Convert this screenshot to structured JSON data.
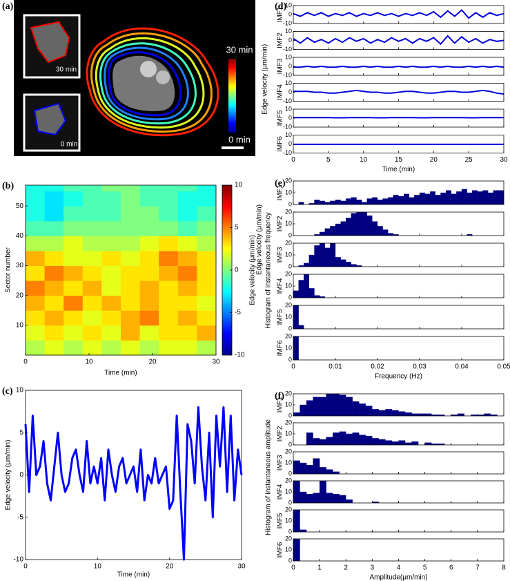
{
  "chart_data": [
    {
      "type": "image",
      "label": "(a)",
      "inset_labels": [
        "30 min",
        "0 min"
      ],
      "colorbar_labels": [
        "30 min",
        "0 min"
      ]
    },
    {
      "type": "heatmap",
      "label": "(b)",
      "xlabel": "Time (min)",
      "ylabel": "Sector number",
      "colorbar_label": "Edge velocity (μm/min)",
      "xlim": [
        0,
        30
      ],
      "xticks": [
        0,
        10,
        20,
        30
      ],
      "ylim": [
        0,
        57
      ],
      "yticks": [
        10,
        20,
        30,
        40,
        50
      ],
      "clim": [
        -10,
        10
      ],
      "cticks": [
        10,
        5,
        0,
        -5,
        -10
      ],
      "xbins": [
        0,
        3,
        6,
        9,
        12,
        15,
        18,
        21,
        24,
        27,
        30
      ],
      "ybins": [
        0,
        5,
        10,
        15,
        20,
        25,
        30,
        35,
        40,
        45,
        50,
        55,
        57
      ],
      "z": [
        [
          1,
          2,
          1,
          2,
          1,
          2,
          1,
          2,
          2,
          1
        ],
        [
          2,
          3,
          2,
          3,
          2,
          4,
          2,
          3,
          3,
          4
        ],
        [
          3,
          4,
          3,
          2,
          3,
          4,
          5,
          3,
          4,
          3
        ],
        [
          4,
          3,
          5,
          3,
          4,
          3,
          4,
          3,
          3,
          2
        ],
        [
          5,
          4,
          3,
          4,
          2,
          3,
          4,
          3,
          4,
          3
        ],
        [
          3,
          5,
          4,
          3,
          2,
          3,
          3,
          4,
          5,
          3
        ],
        [
          4,
          3,
          2,
          2,
          3,
          2,
          3,
          5,
          4,
          3
        ],
        [
          1,
          1,
          2,
          1,
          1,
          1,
          2,
          3,
          2,
          1
        ],
        [
          -1,
          -1,
          0,
          0,
          0,
          0,
          0,
          0,
          -1,
          0
        ],
        [
          -2,
          -3,
          -1,
          -1,
          -1,
          0,
          0,
          -1,
          -2,
          -1
        ],
        [
          -2,
          -3,
          -2,
          -1,
          -1,
          0,
          -1,
          -1,
          -2,
          -2
        ],
        [
          -2,
          -2,
          -1,
          -1,
          0,
          0,
          -1,
          -1,
          -1,
          -2
        ]
      ]
    },
    {
      "type": "line",
      "label": "(c)",
      "xlabel": "Time (min)",
      "ylabel": "Edge velocity (μm/min)",
      "color": "#0000ff",
      "xlim": [
        0,
        30
      ],
      "xticks": [
        0,
        10,
        20,
        30
      ],
      "ylim": [
        -10,
        10
      ],
      "yticks": [
        -10,
        -5,
        0,
        5,
        10
      ],
      "x": [
        0,
        0.5,
        1,
        1.5,
        2,
        2.5,
        3,
        3.5,
        4,
        4.5,
        5,
        5.5,
        6,
        6.5,
        7,
        7.5,
        8,
        8.5,
        9,
        9.5,
        10,
        10.5,
        11,
        11.5,
        12,
        12.5,
        13,
        13.5,
        14,
        14.5,
        15,
        15.5,
        16,
        16.5,
        17,
        17.5,
        18,
        18.5,
        19,
        19.5,
        20,
        20.5,
        21,
        21.5,
        22,
        22.5,
        23,
        23.5,
        24,
        24.5,
        25,
        25.5,
        26,
        26.5,
        27,
        27.5,
        28,
        28.5,
        29,
        29.5,
        30
      ],
      "values": [
        6,
        -2,
        7,
        0,
        1,
        4,
        -1,
        -3,
        1,
        5,
        0,
        -2,
        -1,
        2,
        3,
        0,
        -2,
        4,
        -1,
        1,
        -1,
        2,
        -3,
        3,
        0,
        -2,
        1,
        2,
        -1,
        0,
        1,
        -2,
        3,
        -3,
        0,
        -1,
        2,
        -1,
        0,
        1,
        -4,
        -3,
        7,
        -2,
        -10,
        6,
        4,
        -1,
        8,
        1,
        -3,
        5,
        -5,
        7,
        1,
        8,
        -2,
        7,
        -3,
        3,
        0
      ]
    },
    {
      "type": "line",
      "layout": "stacked",
      "label": "(d)",
      "xlabel": "Time (min)",
      "ylabel": "Edge velocity (μm/min)",
      "xlim": [
        0,
        30
      ],
      "xticks": [
        0,
        5,
        10,
        15,
        20,
        25,
        30
      ],
      "ylim": [
        -10,
        10
      ],
      "yticks": [
        -10,
        0,
        10
      ],
      "x": [
        0,
        1,
        2,
        3,
        4,
        5,
        6,
        7,
        8,
        9,
        10,
        11,
        12,
        13,
        14,
        15,
        16,
        17,
        18,
        19,
        20,
        21,
        22,
        23,
        24,
        25,
        26,
        27,
        28,
        29,
        30
      ],
      "series": [
        {
          "name": "IMF1",
          "color": "#0000dd",
          "values": [
            1,
            -2,
            2,
            -1,
            2,
            -2,
            1,
            -1,
            2,
            -2,
            1,
            -1,
            2,
            -1,
            1,
            -2,
            1,
            -1,
            2,
            -1,
            3,
            -3,
            4,
            -2,
            5,
            -4,
            2,
            -3,
            2,
            -1,
            1
          ]
        },
        {
          "name": "IMF2",
          "color": "#0000dd",
          "values": [
            2,
            -3,
            3,
            -2,
            1,
            -3,
            2,
            -2,
            3,
            -1,
            2,
            -3,
            1,
            -2,
            3,
            -1,
            2,
            -3,
            2,
            -1,
            3,
            -4,
            5,
            -3,
            4,
            -2,
            2,
            -3,
            1,
            -1,
            0
          ]
        },
        {
          "name": "IMF3",
          "color": "#0000dd",
          "values": [
            -1,
            -1,
            0,
            -1,
            0,
            -1,
            -1,
            0,
            -1,
            -1,
            0,
            -1,
            0,
            -1,
            -1,
            0,
            -1,
            0,
            -1,
            -1,
            0,
            -1,
            0,
            -1,
            -1,
            0,
            -1,
            0,
            -1,
            0,
            -1
          ]
        },
        {
          "name": "IMF4",
          "color": "#0000dd",
          "values": [
            1,
            1,
            1,
            0,
            0,
            -1,
            -1,
            0,
            1,
            2,
            1,
            0,
            0,
            -1,
            -1,
            0,
            1,
            1,
            0,
            -1,
            -1,
            0,
            1,
            1,
            0,
            0,
            1,
            2,
            1,
            -1,
            -2
          ]
        },
        {
          "name": "IMF5",
          "color": "#0000dd",
          "values": [
            0.5,
            0.5,
            0.5,
            0.6,
            0.6,
            0.5,
            0.4,
            0.4,
            0.5,
            0.6,
            0.6,
            0.5,
            0.4,
            0.4,
            0.5,
            0.6,
            0.6,
            0.5,
            0.4,
            0.4,
            0.5,
            0.6,
            0.6,
            0.5,
            0.5,
            0.4,
            0.4,
            0.5,
            0.6,
            0.6,
            0.5
          ]
        },
        {
          "name": "IMF6",
          "color": "#0000dd",
          "values": [
            -0.3,
            -0.3,
            -0.3,
            -0.3,
            -0.3,
            -0.3,
            -0.3,
            -0.3,
            -0.3,
            -0.3,
            -0.3,
            -0.3,
            -0.3,
            -0.3,
            -0.3,
            -0.3,
            -0.3,
            -0.3,
            -0.3,
            -0.3,
            -0.3,
            -0.3,
            -0.3,
            -0.3,
            -0.3,
            -0.3,
            -0.3,
            -0.3,
            -0.3,
            -0.3,
            -0.3
          ]
        }
      ]
    },
    {
      "type": "histogram",
      "layout": "stacked",
      "label": "(e)",
      "xlabel": "Frequency (Hz)",
      "ylabel": "Histogram of instantaneous frequency",
      "ylabel_outer": "Edge velocity (μm/min)",
      "xlim": [
        0,
        0.05
      ],
      "xticks": [
        0,
        0.01,
        0.02,
        0.03,
        0.04,
        0.05
      ],
      "ylim": [
        0,
        20
      ],
      "yticks": [
        0,
        10,
        20
      ],
      "bins": [
        0,
        0.00125,
        0.0025,
        0.00375,
        0.005,
        0.00625,
        0.0075,
        0.00875,
        0.01,
        0.01125,
        0.0125,
        0.01375,
        0.015,
        0.01625,
        0.0175,
        0.01875,
        0.02,
        0.02125,
        0.0225,
        0.02375,
        0.025,
        0.02625,
        0.0275,
        0.02875,
        0.03,
        0.03125,
        0.0325,
        0.03375,
        0.035,
        0.03625,
        0.0375,
        0.03875,
        0.04,
        0.04125,
        0.0425,
        0.04375,
        0.045,
        0.04625,
        0.0475,
        0.04875,
        0.05
      ],
      "series": [
        {
          "name": "IMF1",
          "color": "#000080",
          "values": [
            0,
            2,
            0,
            1,
            4,
            3,
            2,
            3,
            4,
            3,
            5,
            6,
            4,
            2,
            5,
            6,
            4,
            5,
            6,
            8,
            7,
            9,
            6,
            8,
            10,
            9,
            11,
            8,
            10,
            12,
            9,
            11,
            13,
            10,
            12,
            11,
            12,
            10,
            12,
            12
          ]
        },
        {
          "name": "IMF2",
          "color": "#000080",
          "values": [
            0,
            0,
            0,
            0,
            1,
            3,
            6,
            8,
            10,
            12,
            15,
            19,
            20,
            20,
            17,
            12,
            8,
            5,
            2,
            1,
            0,
            0,
            0,
            0,
            0,
            0,
            0,
            0,
            0,
            0,
            0,
            0,
            0,
            1,
            0,
            0,
            0,
            0,
            0,
            0
          ]
        },
        {
          "name": "IMF3",
          "color": "#000080",
          "values": [
            0,
            1,
            3,
            10,
            18,
            20,
            16,
            20,
            8,
            6,
            4,
            2,
            1,
            0,
            0,
            0,
            0,
            0,
            0,
            0,
            0,
            0,
            0,
            0,
            0,
            0,
            0,
            0,
            0,
            0,
            0,
            0,
            0,
            0,
            0,
            0,
            0,
            0,
            0,
            0
          ]
        },
        {
          "name": "IMF4",
          "color": "#000080",
          "values": [
            6,
            15,
            20,
            8,
            2,
            1,
            0,
            0,
            0,
            0,
            0,
            0,
            0,
            0,
            0,
            0,
            0,
            0,
            0,
            0,
            0,
            0,
            0,
            0,
            0,
            0,
            0,
            0,
            0,
            0,
            0,
            0,
            0,
            0,
            0,
            0,
            0,
            0,
            0,
            0
          ]
        },
        {
          "name": "IMF5",
          "color": "#000080",
          "values": [
            20,
            3,
            0,
            0,
            0,
            0,
            0,
            0,
            0,
            0,
            0,
            0,
            0,
            0,
            0,
            0,
            0,
            0,
            0,
            0,
            0,
            0,
            0,
            0,
            0,
            0,
            0,
            0,
            0,
            0,
            0,
            0,
            0,
            0,
            0,
            0,
            0,
            0,
            0,
            0
          ]
        },
        {
          "name": "IMF6",
          "color": "#000080",
          "values": [
            20,
            0,
            0,
            0,
            0,
            0,
            0,
            0,
            0,
            0,
            0,
            0,
            0,
            0,
            0,
            0,
            0,
            0,
            0,
            0,
            0,
            0,
            0,
            0,
            0,
            0,
            0,
            0,
            0,
            0,
            0,
            0,
            0,
            0,
            0,
            0,
            0,
            0,
            0,
            0
          ]
        }
      ]
    },
    {
      "type": "histogram",
      "layout": "stacked",
      "label": "(f)",
      "xlabel": "Amplitude(μm/min)",
      "ylabel": "Histogram of instantaneous amplitude",
      "xlim": [
        0,
        8
      ],
      "xticks": [
        0,
        1,
        2,
        3,
        4,
        5,
        6,
        7,
        8
      ],
      "ylim": [
        0,
        20
      ],
      "yticks": [
        0,
        10,
        20
      ],
      "bins": [
        0,
        0.25,
        0.5,
        0.75,
        1,
        1.25,
        1.5,
        1.75,
        2,
        2.25,
        2.5,
        2.75,
        3,
        3.25,
        3.5,
        3.75,
        4,
        4.25,
        4.5,
        4.75,
        5,
        5.25,
        5.5,
        5.75,
        6,
        6.25,
        6.5,
        6.75,
        7,
        7.25,
        7.5,
        7.75,
        8
      ],
      "series": [
        {
          "name": "IMF1",
          "color": "#000080",
          "values": [
            3,
            10,
            14,
            17,
            17,
            20,
            20,
            19,
            17,
            13,
            11,
            9,
            6,
            5,
            6,
            5,
            4,
            3,
            2,
            2,
            2,
            1,
            1,
            0,
            1,
            2,
            0,
            1,
            1,
            2,
            1,
            0
          ]
        },
        {
          "name": "IMF2",
          "color": "#000080",
          "values": [
            0,
            0,
            11,
            6,
            5,
            7,
            11,
            12,
            10,
            11,
            9,
            8,
            6,
            5,
            4,
            3,
            4,
            2,
            3,
            0,
            2,
            1,
            1,
            0,
            0,
            0,
            0,
            0,
            0,
            0,
            0,
            0
          ]
        },
        {
          "name": "IMF3",
          "color": "#000080",
          "values": [
            12,
            10,
            8,
            14,
            6,
            4,
            2,
            0,
            0,
            0,
            0,
            0,
            0,
            0,
            0,
            0,
            0,
            0,
            0,
            0,
            0,
            0,
            0,
            0,
            0,
            0,
            0,
            0,
            0,
            0,
            0,
            0
          ]
        },
        {
          "name": "IMF4",
          "color": "#000080",
          "values": [
            20,
            10,
            8,
            9,
            20,
            9,
            8,
            7,
            3,
            0,
            0,
            0,
            1,
            0,
            0,
            0,
            0,
            0,
            0,
            0,
            0,
            0,
            0,
            0,
            0,
            0,
            0,
            0,
            0,
            0,
            0,
            0
          ]
        },
        {
          "name": "IMF5",
          "color": "#000080",
          "values": [
            20,
            2,
            0,
            0,
            0,
            0,
            0,
            0,
            0,
            0,
            0,
            0,
            0,
            0,
            0,
            0,
            0,
            0,
            0,
            0,
            0,
            0,
            0,
            0,
            0,
            0,
            0,
            0,
            0,
            0,
            0,
            0
          ]
        },
        {
          "name": "IMF6",
          "color": "#000080",
          "values": [
            20,
            0,
            0,
            0,
            0,
            0,
            0,
            0,
            0,
            0,
            0,
            0,
            0,
            0,
            0,
            0,
            0,
            0,
            0,
            0,
            0,
            0,
            0,
            0,
            0,
            0,
            0,
            0,
            0,
            0,
            0,
            0
          ]
        }
      ]
    }
  ]
}
